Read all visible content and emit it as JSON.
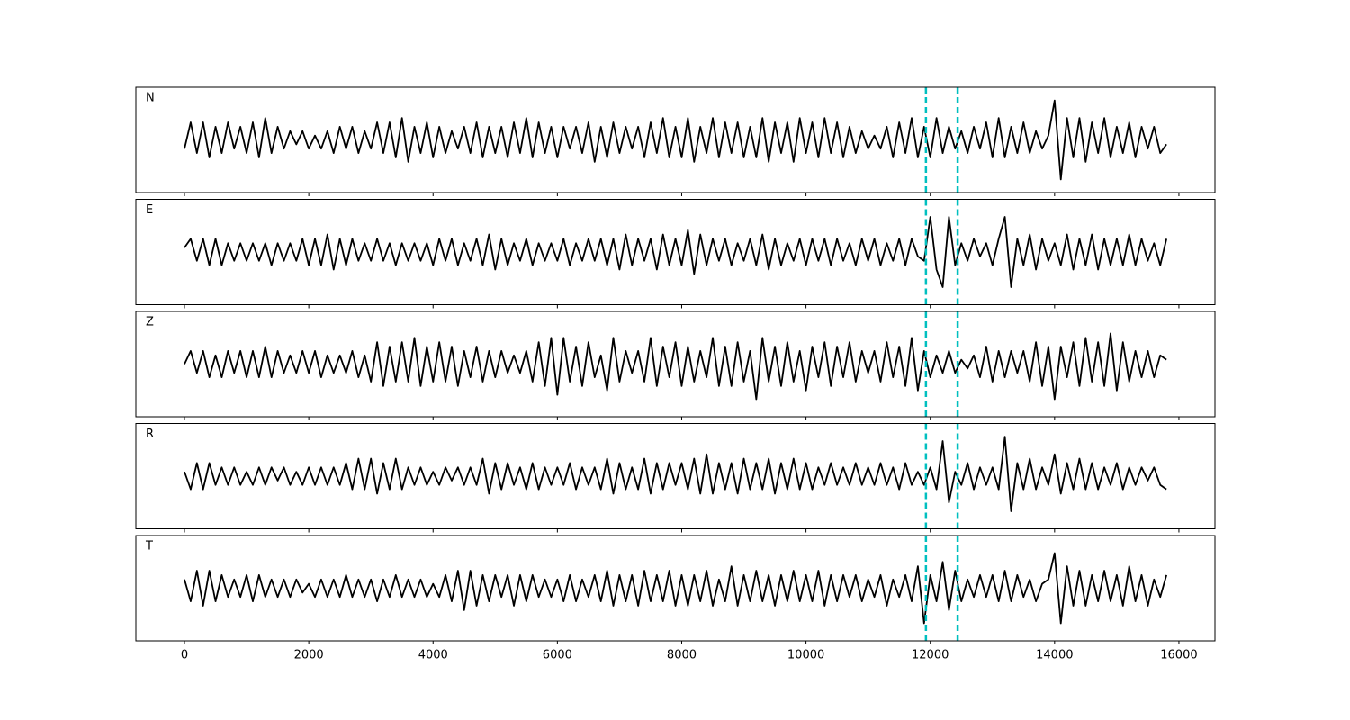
{
  "chart_data": {
    "type": "line",
    "layout": "stacked",
    "x": [
      0,
      100,
      200,
      300,
      400,
      500,
      600,
      700,
      800,
      900,
      1000,
      1100,
      1200,
      1300,
      1400,
      1500,
      1600,
      1700,
      1800,
      1900,
      2000,
      2100,
      2200,
      2300,
      2400,
      2500,
      2600,
      2700,
      2800,
      2900,
      3000,
      3100,
      3200,
      3300,
      3400,
      3500,
      3600,
      3700,
      3800,
      3900,
      4000,
      4100,
      4200,
      4300,
      4400,
      4500,
      4600,
      4700,
      4800,
      4900,
      5000,
      5100,
      5200,
      5300,
      5400,
      5500,
      5600,
      5700,
      5800,
      5900,
      6000,
      6100,
      6200,
      6300,
      6400,
      6500,
      6600,
      6700,
      6800,
      6900,
      7000,
      7100,
      7200,
      7300,
      7400,
      7500,
      7600,
      7700,
      7800,
      7900,
      8000,
      8100,
      8200,
      8300,
      8400,
      8500,
      8600,
      8700,
      8800,
      8900,
      9000,
      9100,
      9200,
      9300,
      9400,
      9500,
      9600,
      9700,
      9800,
      9900,
      10000,
      10100,
      10200,
      10300,
      10400,
      10500,
      10600,
      10700,
      10800,
      10900,
      11000,
      11100,
      11200,
      11300,
      11400,
      11500,
      11600,
      11700,
      11800,
      11900,
      12000,
      12100,
      12200,
      12300,
      12400,
      12500,
      12600,
      12700,
      12800,
      12900,
      13000,
      13100,
      13200,
      13300,
      13400,
      13500,
      13600,
      13700,
      13800,
      13900,
      14000,
      14100,
      14200,
      14300,
      14400,
      14500,
      14600,
      14700,
      14800,
      14900,
      15000,
      15100,
      15200,
      15300,
      15400,
      15500,
      15600,
      15700,
      15800
    ],
    "series": [
      {
        "name": "N",
        "color": "#000000",
        "values": [
          -2,
          4,
          -3,
          4,
          -4,
          3,
          -3,
          4,
          -2,
          3,
          -3,
          4,
          -4,
          5,
          -3,
          3,
          -2,
          2,
          -1,
          2,
          -2,
          1,
          -2,
          2,
          -3,
          3,
          -2,
          3,
          -3,
          2,
          -2,
          4,
          -3,
          4,
          -4,
          5,
          -5,
          3,
          -3,
          4,
          -4,
          3,
          -3,
          2,
          -2,
          3,
          -3,
          4,
          -4,
          3,
          -3,
          3,
          -4,
          4,
          -3,
          5,
          -4,
          4,
          -3,
          3,
          -4,
          3,
          -2,
          3,
          -3,
          4,
          -5,
          3,
          -4,
          4,
          -3,
          3,
          -2,
          3,
          -4,
          4,
          -3,
          5,
          -4,
          3,
          -4,
          5,
          -5,
          3,
          -3,
          5,
          -4,
          4,
          -3,
          4,
          -4,
          3,
          -4,
          5,
          -5,
          4,
          -3,
          4,
          -5,
          5,
          -3,
          4,
          -4,
          5,
          -3,
          4,
          -4,
          3,
          -3,
          2,
          -2,
          1,
          -2,
          3,
          -4,
          4,
          -3,
          5,
          -4,
          3,
          -4,
          5,
          -3,
          3,
          -2,
          2,
          -3,
          3,
          -2,
          4,
          -4,
          5,
          -4,
          3,
          -3,
          4,
          -3,
          2,
          -2,
          1,
          9,
          -9,
          5,
          -4,
          5,
          -5,
          4,
          -3,
          5,
          -4,
          3,
          -3,
          4,
          -4,
          3,
          -2,
          3,
          -3,
          -1
        ]
      },
      {
        "name": "E",
        "color": "#000000",
        "values": [
          1,
          3,
          -2,
          3,
          -3,
          3,
          -3,
          2,
          -2,
          2,
          -2,
          2,
          -2,
          2,
          -3,
          2,
          -2,
          2,
          -2,
          3,
          -3,
          3,
          -3,
          4,
          -4,
          3,
          -3,
          3,
          -2,
          2,
          -2,
          3,
          -2,
          2,
          -3,
          2,
          -2,
          2,
          -2,
          2,
          -3,
          3,
          -2,
          3,
          -3,
          2,
          -2,
          3,
          -3,
          4,
          -4,
          3,
          -3,
          2,
          -2,
          3,
          -3,
          2,
          -2,
          2,
          -2,
          3,
          -3,
          2,
          -2,
          3,
          -2,
          3,
          -3,
          3,
          -4,
          4,
          -3,
          3,
          -2,
          3,
          -4,
          4,
          -3,
          3,
          -3,
          5,
          -5,
          4,
          -3,
          3,
          -2,
          3,
          -3,
          2,
          -2,
          3,
          -3,
          4,
          -4,
          3,
          -3,
          2,
          -2,
          3,
          -3,
          3,
          -2,
          3,
          -3,
          3,
          -2,
          2,
          -3,
          3,
          -2,
          3,
          -3,
          2,
          -2,
          3,
          -3,
          3,
          -1,
          -2,
          8,
          -4,
          -8,
          8,
          -3,
          2,
          -2,
          3,
          -1,
          2,
          -3,
          3,
          8,
          -8,
          3,
          -3,
          4,
          -4,
          3,
          -2,
          2,
          -3,
          4,
          -4,
          3,
          -3,
          4,
          -4,
          3,
          -3,
          3,
          -3,
          4,
          -3,
          3,
          -2,
          2,
          -3,
          3
        ]
      },
      {
        "name": "Z",
        "color": "#000000",
        "values": [
          0,
          3,
          -2,
          3,
          -3,
          2,
          -3,
          3,
          -2,
          3,
          -3,
          3,
          -3,
          4,
          -3,
          3,
          -2,
          2,
          -2,
          3,
          -2,
          3,
          -3,
          2,
          -2,
          2,
          -2,
          3,
          -3,
          2,
          -4,
          5,
          -5,
          4,
          -4,
          5,
          -4,
          6,
          -5,
          4,
          -4,
          5,
          -4,
          4,
          -5,
          3,
          -3,
          4,
          -4,
          3,
          -3,
          3,
          -2,
          2,
          -2,
          3,
          -4,
          5,
          -5,
          6,
          -7,
          6,
          -4,
          4,
          -5,
          5,
          -3,
          2,
          -6,
          6,
          -4,
          3,
          -2,
          3,
          -4,
          6,
          -5,
          4,
          -3,
          5,
          -5,
          4,
          -4,
          3,
          -3,
          6,
          -5,
          4,
          -5,
          5,
          -4,
          3,
          -8,
          6,
          -4,
          4,
          -5,
          5,
          -4,
          3,
          -6,
          4,
          -3,
          5,
          -5,
          4,
          -3,
          5,
          -4,
          3,
          -2,
          3,
          -4,
          5,
          -3,
          4,
          -5,
          6,
          -6,
          3,
          -3,
          2,
          -2,
          3,
          -2,
          1,
          -1,
          2,
          -3,
          4,
          -4,
          3,
          -3,
          3,
          -2,
          3,
          -4,
          5,
          -5,
          4,
          -8,
          4,
          -3,
          5,
          -5,
          6,
          -4,
          5,
          -5,
          7,
          -6,
          5,
          -4,
          3,
          -3,
          3,
          -3,
          2,
          1
        ]
      },
      {
        "name": "R",
        "color": "#000000",
        "values": [
          1,
          -3,
          3,
          -3,
          3,
          -2,
          2,
          -2,
          2,
          -2,
          1,
          -2,
          2,
          -2,
          2,
          -1,
          2,
          -2,
          1,
          -2,
          2,
          -2,
          2,
          -2,
          2,
          -2,
          3,
          -3,
          4,
          -3,
          4,
          -4,
          3,
          -3,
          4,
          -3,
          2,
          -2,
          2,
          -2,
          1,
          -2,
          2,
          -1,
          2,
          -2,
          2,
          -2,
          4,
          -4,
          3,
          -3,
          3,
          -2,
          2,
          -3,
          3,
          -3,
          2,
          -2,
          2,
          -2,
          3,
          -3,
          2,
          -2,
          2,
          -3,
          4,
          -4,
          3,
          -3,
          2,
          -3,
          4,
          -4,
          3,
          -3,
          3,
          -2,
          3,
          -3,
          4,
          -4,
          5,
          -4,
          3,
          -3,
          3,
          -4,
          4,
          -3,
          3,
          -3,
          4,
          -4,
          3,
          -3,
          4,
          -3,
          3,
          -3,
          2,
          -2,
          3,
          -2,
          2,
          -2,
          3,
          -2,
          2,
          -2,
          3,
          -2,
          2,
          -3,
          3,
          -2,
          1,
          -2,
          2,
          -3,
          8,
          -6,
          1,
          -2,
          3,
          -3,
          2,
          -2,
          2,
          -3,
          9,
          -8,
          3,
          -3,
          4,
          -3,
          2,
          -2,
          5,
          -4,
          3,
          -3,
          4,
          -3,
          3,
          -3,
          2,
          -2,
          3,
          -3,
          2,
          -2,
          2,
          -1,
          2,
          -2,
          -3
        ]
      },
      {
        "name": "T",
        "color": "#000000",
        "values": [
          2,
          -3,
          4,
          -4,
          4,
          -3,
          3,
          -2,
          2,
          -2,
          3,
          -3,
          3,
          -2,
          2,
          -2,
          2,
          -2,
          2,
          -1,
          1,
          -2,
          2,
          -2,
          2,
          -2,
          3,
          -2,
          2,
          -2,
          2,
          -3,
          2,
          -2,
          3,
          -2,
          2,
          -2,
          2,
          -2,
          1,
          -2,
          3,
          -3,
          4,
          -5,
          4,
          -4,
          3,
          -3,
          3,
          -2,
          3,
          -4,
          3,
          -3,
          3,
          -2,
          2,
          -2,
          2,
          -3,
          3,
          -3,
          2,
          -2,
          3,
          -3,
          4,
          -4,
          3,
          -3,
          3,
          -4,
          4,
          -3,
          3,
          -3,
          4,
          -4,
          3,
          -4,
          3,
          -3,
          4,
          -4,
          2,
          -3,
          5,
          -4,
          3,
          -3,
          4,
          -3,
          3,
          -4,
          3,
          -3,
          4,
          -3,
          3,
          -3,
          4,
          -4,
          3,
          -3,
          3,
          -2,
          3,
          -3,
          2,
          -2,
          3,
          -4,
          2,
          -2,
          3,
          -3,
          5,
          -8,
          3,
          -3,
          6,
          -5,
          4,
          -3,
          2,
          -2,
          3,
          -2,
          3,
          -3,
          4,
          -3,
          3,
          -2,
          2,
          -3,
          1,
          2,
          8,
          -8,
          5,
          -4,
          4,
          -4,
          3,
          -3,
          4,
          -3,
          3,
          -4,
          5,
          -3,
          3,
          -4,
          2,
          -2,
          3
        ]
      }
    ],
    "xlim": [
      -782,
      16580
    ],
    "xticks": [
      0,
      2000,
      4000,
      6000,
      8000,
      10000,
      12000,
      14000,
      16000
    ],
    "ylim": [
      -12,
      12
    ],
    "vlines": [
      11930,
      12440
    ],
    "vline_color": "#00bfbf"
  }
}
